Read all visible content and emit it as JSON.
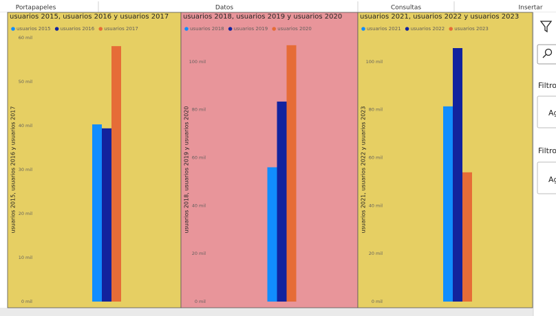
{
  "ribbon": {
    "groups": [
      "Portapapeles",
      "Datos",
      "Consultas",
      "Insertar"
    ]
  },
  "side_panel": {
    "filters": [
      {
        "title": "Filtro",
        "field": "Ag"
      },
      {
        "title": "Filtro",
        "field": "Ag"
      }
    ]
  },
  "chart_data": [
    {
      "type": "bar",
      "title": "usuarios 2015, usuarios 2016 y usuarios 2017",
      "y_label": "usuarios 2015, usuarios 2016 y usuarios 2017",
      "background": "#e6cf63",
      "categories": [
        null
      ],
      "series": [
        {
          "name": "usuarios 2015",
          "color": "#118dff",
          "values": [
            40300
          ]
        },
        {
          "name": "usuarios 2016",
          "color": "#12239e",
          "values": [
            39400
          ]
        },
        {
          "name": "usuarios 2017",
          "color": "#e66c37",
          "values": [
            58100
          ]
        }
      ],
      "ylim": [
        0,
        60000
      ],
      "yticks": [
        {
          "value": 0,
          "label": "0 mil"
        },
        {
          "value": 10000,
          "label": "10 mil"
        },
        {
          "value": 20000,
          "label": "20 mil"
        },
        {
          "value": 30000,
          "label": "30 mil"
        },
        {
          "value": 40000,
          "label": "40 mil"
        },
        {
          "value": 50000,
          "label": "50 mil"
        },
        {
          "value": 60000,
          "label": "60 mil"
        }
      ],
      "grid": false
    },
    {
      "type": "bar",
      "title": "usuarios 2018, usuarios 2019 y usuarios 2020",
      "y_label": "usuarios 2018, usuarios 2019 y usuarios 2020",
      "background": "#e8959a",
      "categories": [
        null
      ],
      "series": [
        {
          "name": "usuarios 2018",
          "color": "#118dff",
          "values": [
            56000
          ]
        },
        {
          "name": "usuarios 2019",
          "color": "#12239e",
          "values": [
            83400
          ]
        },
        {
          "name": "usuarios 2020",
          "color": "#e66c37",
          "values": [
            106900
          ]
        }
      ],
      "ylim": [
        0,
        110000
      ],
      "yticks": [
        {
          "value": 0,
          "label": "0 mil"
        },
        {
          "value": 20000,
          "label": "20 mil"
        },
        {
          "value": 40000,
          "label": "40 mil"
        },
        {
          "value": 60000,
          "label": "60 mil"
        },
        {
          "value": 80000,
          "label": "80 mil"
        },
        {
          "value": 100000,
          "label": "100 mil"
        }
      ],
      "grid": false
    },
    {
      "type": "bar",
      "title": "usuarios 2021, usuarios 2022 y usuarios 2023",
      "y_label": "usuarios 2021, usuarios 2022 y usuarios 2023",
      "background": "#e6cf63",
      "categories": [
        null
      ],
      "series": [
        {
          "name": "usuarios 2021",
          "color": "#118dff",
          "values": [
            81400
          ]
        },
        {
          "name": "usuarios 2022",
          "color": "#12239e",
          "values": [
            105700
          ]
        },
        {
          "name": "usuarios 2023",
          "color": "#e66c37",
          "values": [
            53900
          ]
        }
      ],
      "ylim": [
        0,
        110000
      ],
      "yticks": [
        {
          "value": 0,
          "label": "0 mil"
        },
        {
          "value": 20000,
          "label": "20 mil"
        },
        {
          "value": 40000,
          "label": "40 mil"
        },
        {
          "value": 60000,
          "label": "60 mil"
        },
        {
          "value": 80000,
          "label": "80 mil"
        },
        {
          "value": 100000,
          "label": "100 mil"
        }
      ],
      "grid": false
    }
  ]
}
